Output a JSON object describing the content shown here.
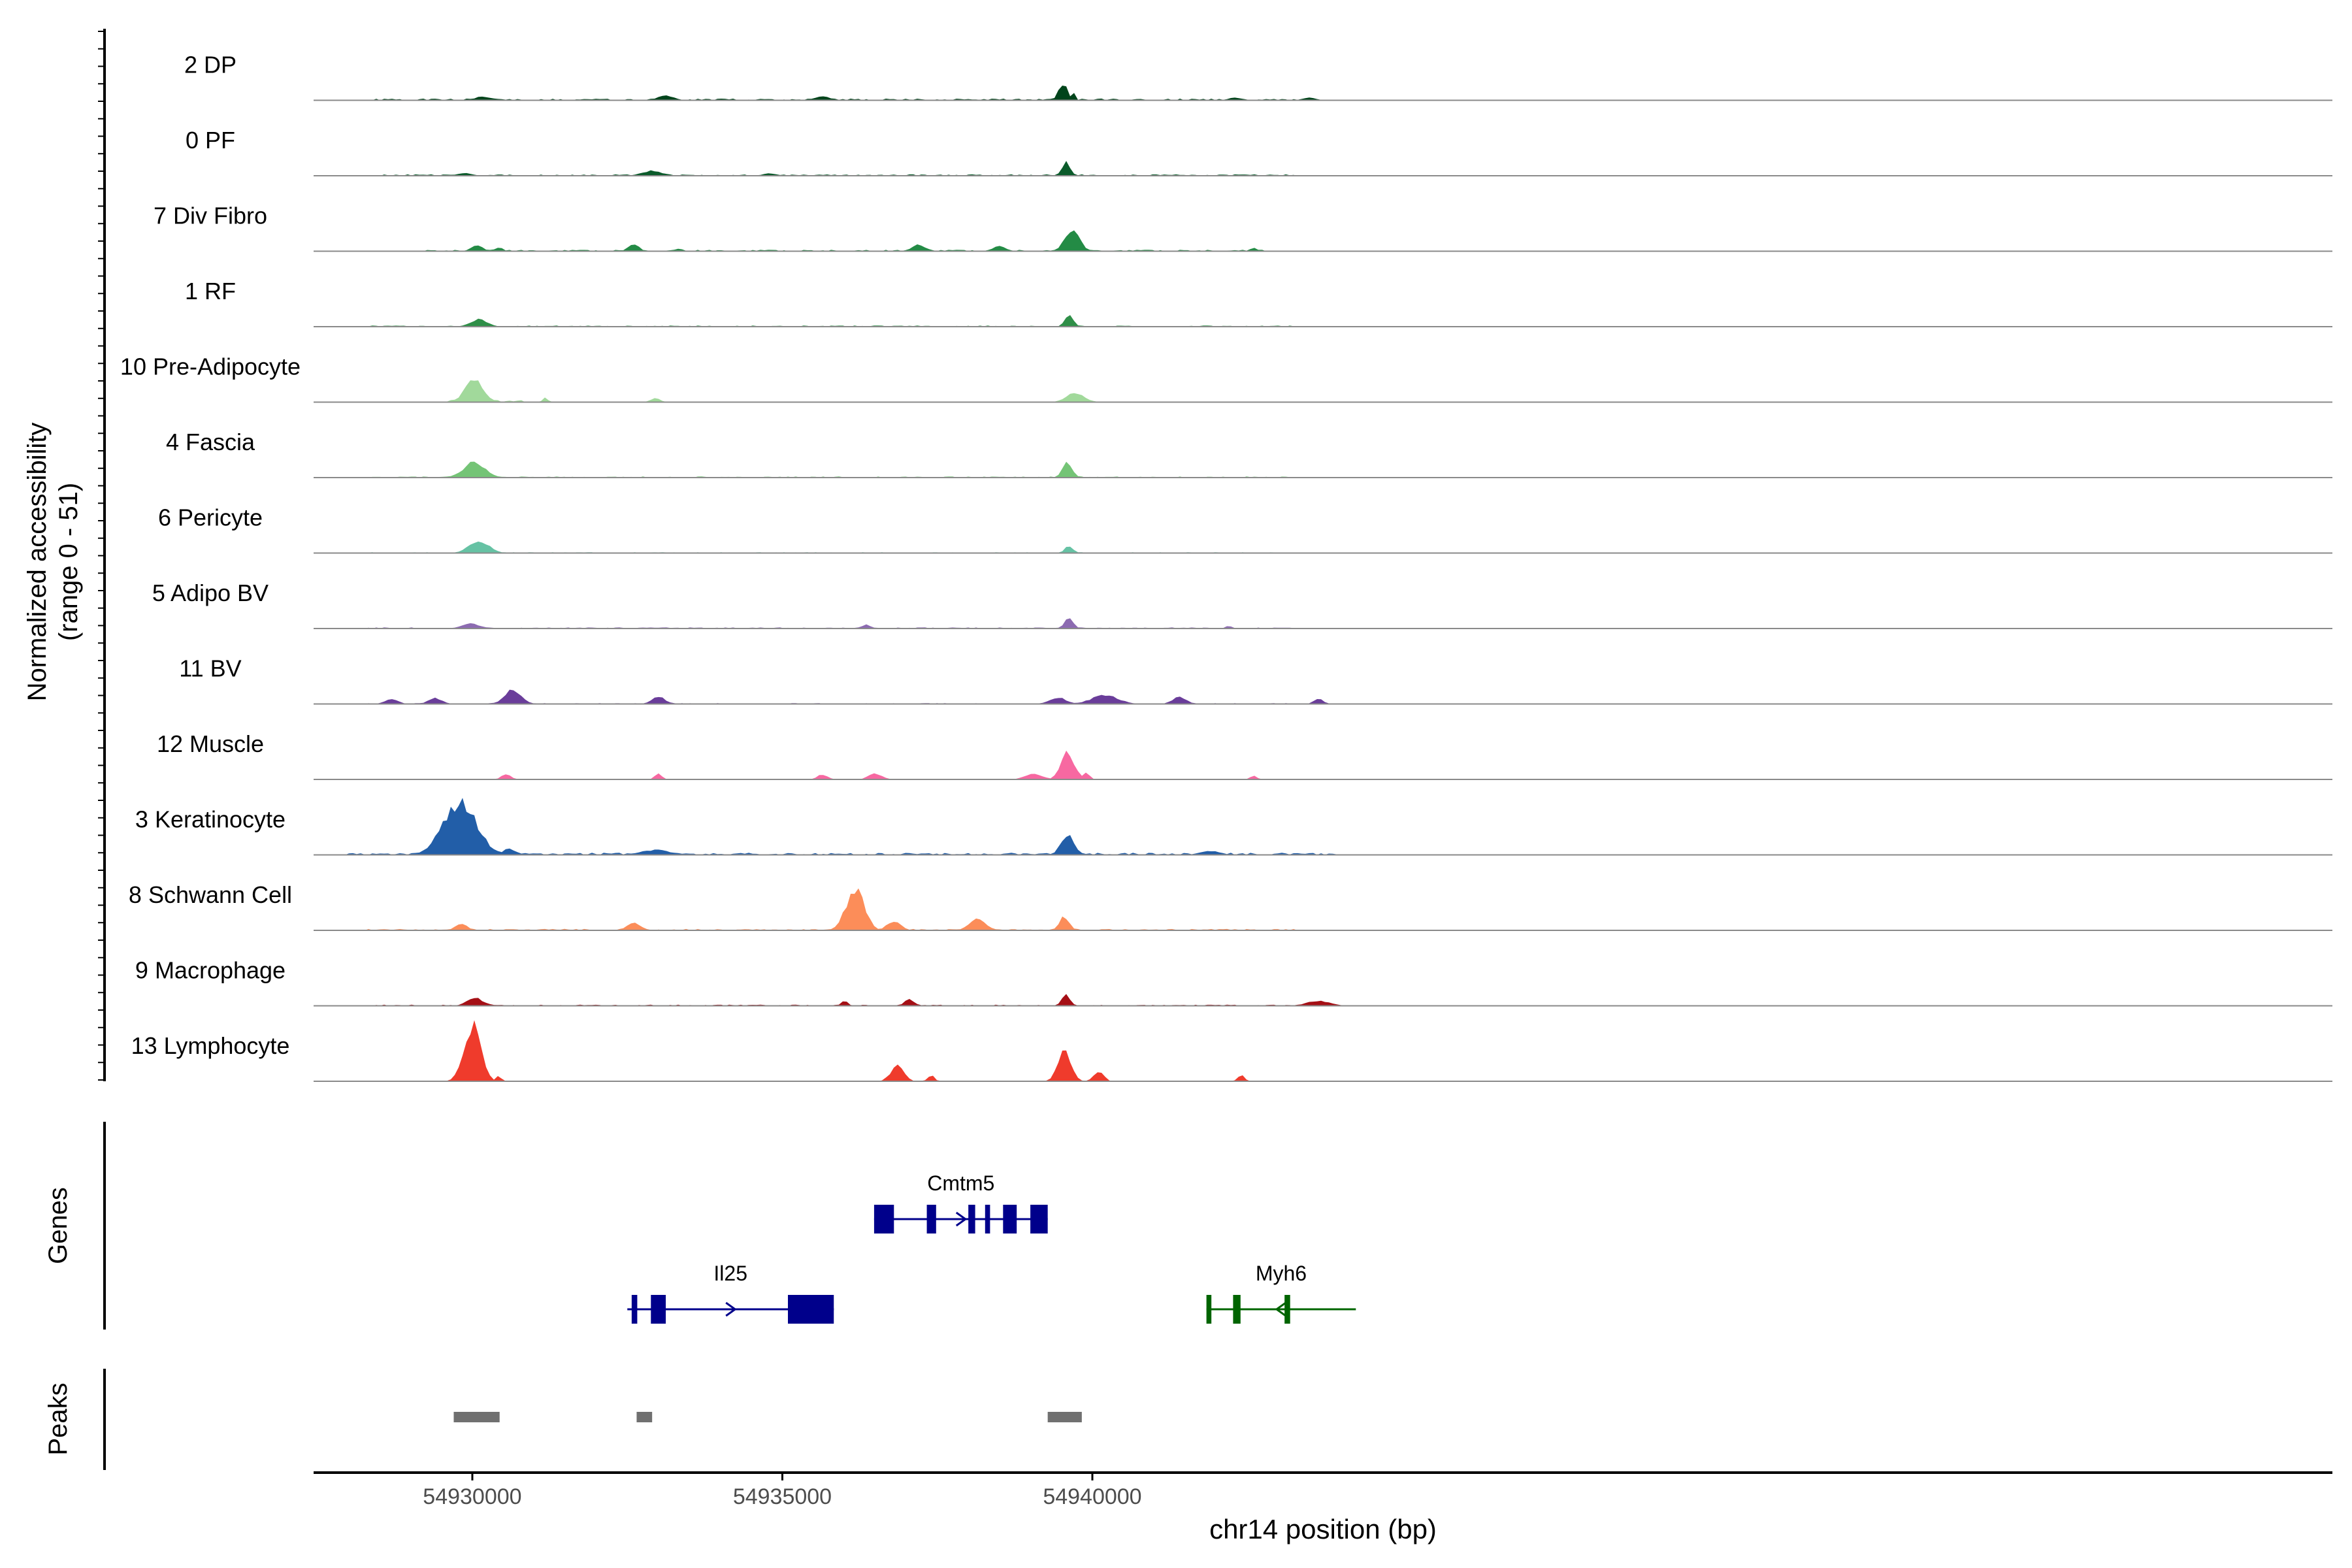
{
  "chart_data": {
    "type": "area",
    "xlabel": "chr14 position (bp)",
    "xlim": [
      54927440,
      54960000
    ],
    "x_ticks": [
      54930000,
      54935000,
      54940000
    ],
    "x_tick_labels": [
      "54930000",
      "54935000",
      "54940000"
    ],
    "coverage": {
      "ylabel_line1": "Normalized accessibility",
      "ylabel_line2": "(range 0 - 51)",
      "ylim": [
        0,
        51
      ],
      "tracks": [
        {
          "name": "2 DP",
          "color": "#00441b",
          "peaks": [
            [
              54929920,
              54930450,
              3
            ],
            [
              54932900,
              54933350,
              4
            ],
            [
              54935400,
              54935900,
              3
            ],
            [
              54939400,
              54939650,
              14
            ],
            [
              54939650,
              54939750,
              6
            ],
            [
              54942100,
              54942500,
              2
            ],
            [
              54943300,
              54943700,
              2
            ]
          ],
          "noise": [
            54928300,
            54943300,
            1.2
          ]
        },
        {
          "name": "0 PF",
          "color": "#0b5b2b",
          "peaks": [
            [
              54929650,
              54930100,
              2
            ],
            [
              54932600,
              54933200,
              4
            ],
            [
              54934600,
              54935000,
              2
            ],
            [
              54939450,
              54939700,
              11
            ]
          ],
          "noise": [
            54928300,
            54943300,
            1
          ]
        },
        {
          "name": "7 Div Fibro",
          "color": "#238b45",
          "peaks": [
            [
              54929900,
              54930250,
              5
            ],
            [
              54930300,
              54930550,
              3
            ],
            [
              54932450,
              54932750,
              6
            ],
            [
              54933200,
              54933450,
              2
            ],
            [
              54937000,
              54937400,
              5
            ],
            [
              54938300,
              54938700,
              4
            ],
            [
              54939450,
              54939900,
              17
            ],
            [
              54942500,
              54942700,
              3
            ]
          ],
          "noise": [
            54929000,
            54942800,
            1
          ]
        },
        {
          "name": "1 RF",
          "color": "#2f8f48",
          "peaks": [
            [
              54929850,
              54930350,
              6
            ],
            [
              54939500,
              54939750,
              10
            ]
          ],
          "noise": [
            54928300,
            54943300,
            0.8
          ]
        },
        {
          "name": "10 Pre-Adipocyte",
          "color": "#a1d99b",
          "peaks": [
            [
              54929750,
              54930300,
              18
            ],
            [
              54931100,
              54931250,
              4
            ],
            [
              54932800,
              54933100,
              3
            ],
            [
              54939450,
              54940000,
              7
            ]
          ],
          "noise": [
            54929500,
            54930800,
            1.5
          ]
        },
        {
          "name": "4 Fascia",
          "color": "#74c476",
          "peaks": [
            [
              54929700,
              54930350,
              12
            ],
            [
              54939450,
              54939750,
              12
            ]
          ],
          "noise": [
            54928300,
            54943300,
            0.8
          ]
        },
        {
          "name": "6 Pericyte",
          "color": "#66c2a4",
          "peaks": [
            [
              54929800,
              54930400,
              10
            ],
            [
              54939500,
              54939750,
              6
            ]
          ],
          "noise": [
            54928300,
            54943300,
            0.6
          ]
        },
        {
          "name": "5 Adipo BV",
          "color": "#8c6bb1",
          "peaks": [
            [
              54929700,
              54930250,
              4
            ],
            [
              54936200,
              54936500,
              3
            ],
            [
              54939500,
              54939750,
              9
            ],
            [
              54942100,
              54942300,
              2
            ]
          ],
          "noise": [
            54928300,
            54943300,
            0.8
          ]
        },
        {
          "name": "11 BV",
          "color": "#6a3d9a",
          "peaks": [
            [
              54928500,
              54928900,
              4
            ],
            [
              54929200,
              54929600,
              5
            ],
            [
              54930400,
              54930900,
              11
            ],
            [
              54932800,
              54933200,
              6
            ],
            [
              54939200,
              54939700,
              5
            ],
            [
              54939800,
              54940600,
              7
            ],
            [
              54941200,
              54941600,
              6
            ],
            [
              54943500,
              54943800,
              4
            ]
          ],
          "noise": [
            54928300,
            54943300,
            0.6
          ]
        },
        {
          "name": "12 Muscle",
          "color": "#f768a1",
          "peaks": [
            [
              54930400,
              54930700,
              4
            ],
            [
              54932900,
              54933100,
              5
            ],
            [
              54935500,
              54935800,
              4
            ],
            [
              54936300,
              54936700,
              5
            ],
            [
              54938800,
              54939300,
              5
            ],
            [
              54939400,
              54939800,
              22
            ],
            [
              54939800,
              54940000,
              6
            ],
            [
              54942500,
              54942700,
              3
            ]
          ],
          "noise": [
            54929000,
            54942800,
            0.3
          ]
        },
        {
          "name": "3 Keratinocyte",
          "color": "#225ea8",
          "peaks": [
            [
              54929300,
              54930300,
              42
            ],
            [
              54930400,
              54930800,
              5
            ],
            [
              54932500,
              54933400,
              4
            ],
            [
              54939400,
              54939800,
              16
            ],
            [
              54941600,
              54942200,
              3
            ]
          ],
          "noise": [
            54928000,
            54944000,
            1.5
          ]
        },
        {
          "name": "8 Schwann Cell",
          "color": "#fc8d59",
          "peaks": [
            [
              54929650,
              54930000,
              6
            ],
            [
              54932400,
              54932800,
              6
            ],
            [
              54935900,
              54936450,
              33
            ],
            [
              54936600,
              54937000,
              8
            ],
            [
              54937900,
              54938400,
              9
            ],
            [
              54939400,
              54939700,
              11
            ]
          ],
          "noise": [
            54928300,
            54943300,
            1
          ]
        },
        {
          "name": "9 Macrophage",
          "color": "#a50f15",
          "peaks": [
            [
              54929800,
              54930300,
              6
            ],
            [
              54935900,
              54936100,
              4
            ],
            [
              54936900,
              54937200,
              5
            ],
            [
              54939450,
              54939700,
              9
            ],
            [
              54943300,
              54944000,
              4
            ]
          ],
          "noise": [
            54928300,
            54943300,
            0.8
          ]
        },
        {
          "name": "13 Lymphocyte",
          "color": "#ef3b2c",
          "peaks": [
            [
              54929750,
              54930250,
              45
            ],
            [
              54930350,
              54930500,
              5
            ],
            [
              54936650,
              54937050,
              12
            ],
            [
              54937300,
              54937500,
              5
            ],
            [
              54939350,
              54939750,
              24
            ],
            [
              54939950,
              54940250,
              8
            ],
            [
              54942300,
              54942500,
              5
            ]
          ],
          "noise": [
            54937000,
            54939000,
            0.4
          ]
        }
      ]
    },
    "genes": {
      "track_label": "Genes",
      "items": [
        {
          "name": "Cmtm5",
          "strand": "+",
          "color": "#00008b",
          "start": 54936480,
          "end": 54939280,
          "exons": [
            [
              54936480,
              54936800
            ],
            [
              54937330,
              54937480
            ],
            [
              54938000,
              54938110
            ],
            [
              54938270,
              54938350
            ],
            [
              54938560,
              54938780
            ],
            [
              54939000,
              54939280
            ]
          ]
        },
        {
          "name": "Il25",
          "strand": "+",
          "color": "#00008b",
          "start": 54932500,
          "end": 54935830,
          "exons": [
            [
              54932570,
              54932660
            ],
            [
              54932880,
              54933120
            ],
            [
              54935090,
              54935830
            ]
          ]
        },
        {
          "name": "Myh6",
          "strand": "-",
          "color": "#006400",
          "start": 54941840,
          "end": 54944250,
          "exons": [
            [
              54941840,
              54941920
            ],
            [
              54942270,
              54942390
            ],
            [
              54943100,
              54943190
            ]
          ]
        }
      ]
    },
    "peaks": {
      "track_label": "Peaks",
      "color": "#707070",
      "regions": [
        [
          54929700,
          54930440
        ],
        [
          54932650,
          54932900
        ],
        [
          54939280,
          54939830
        ]
      ]
    }
  }
}
